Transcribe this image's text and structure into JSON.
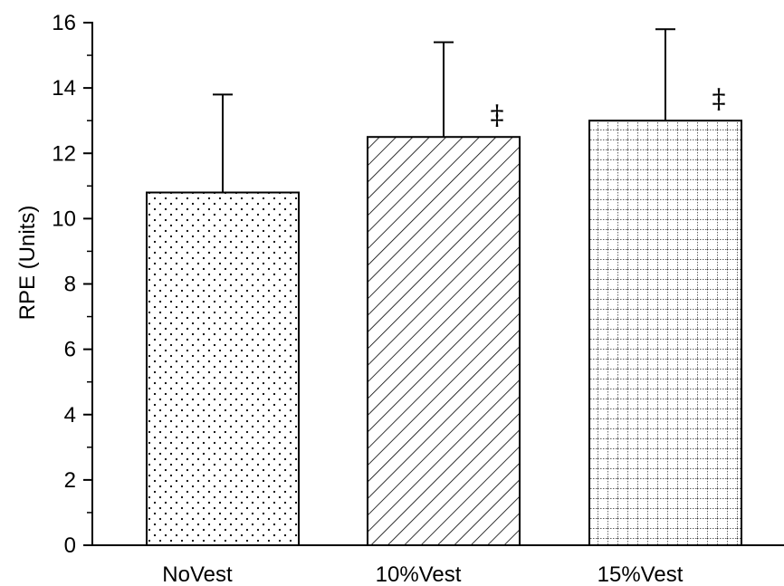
{
  "chart_data": {
    "type": "bar",
    "title": "",
    "xlabel": "",
    "ylabel": "RPE (Units)",
    "ylim": [
      0,
      16
    ],
    "yticks": [
      0,
      2,
      4,
      6,
      8,
      10,
      12,
      14,
      16
    ],
    "categories": [
      "NoVest",
      "10%Vest",
      "15%Vest"
    ],
    "values": [
      10.8,
      12.5,
      13.0
    ],
    "error_upper": [
      3.0,
      2.9,
      2.8
    ],
    "fill_patterns": [
      "dots",
      "diagonal-hatch",
      "grid"
    ],
    "annotations": [
      "",
      "‡",
      "‡"
    ],
    "grid": false,
    "bar_color": "#ffffff",
    "edge_color": "#000000"
  }
}
